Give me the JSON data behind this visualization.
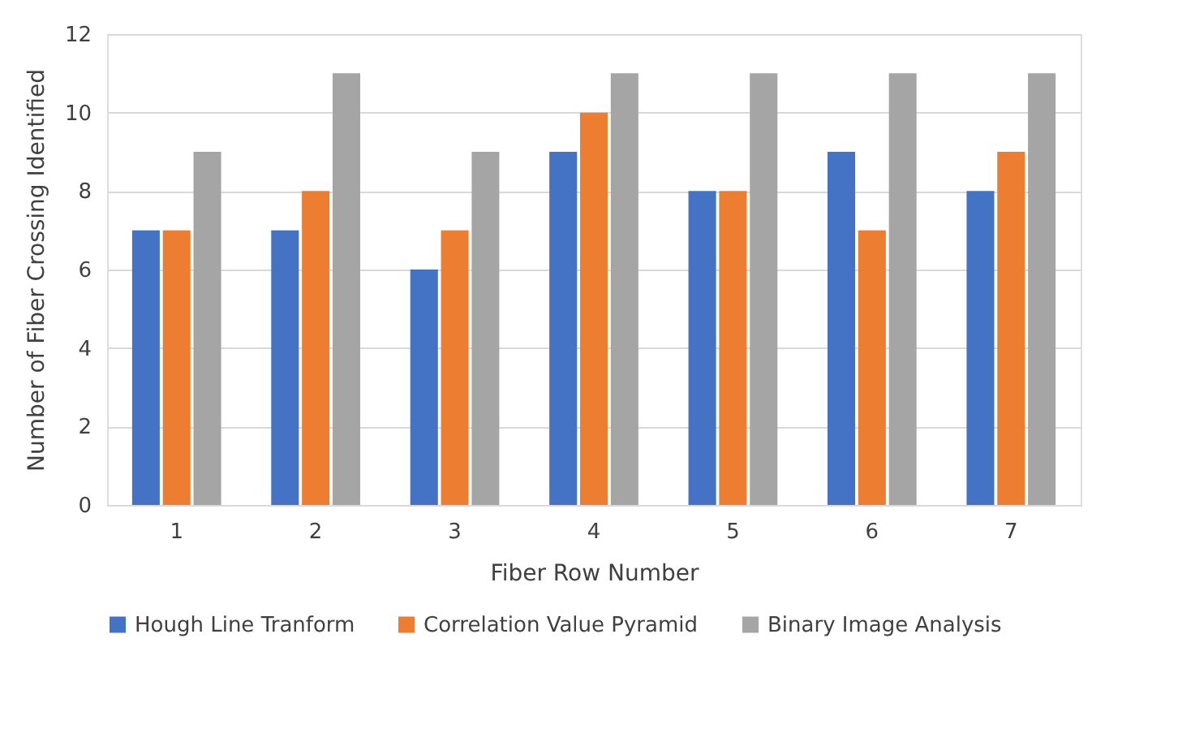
{
  "chart_data": {
    "type": "bar",
    "xlabel": "Fiber Row Number",
    "ylabel": "Number of Fiber Crossing Identified",
    "categories": [
      "1",
      "2",
      "3",
      "4",
      "5",
      "6",
      "7"
    ],
    "series": [
      {
        "name": "Hough Line Tranform",
        "color": "#4472c4",
        "values": [
          7,
          7,
          6,
          9,
          8,
          9,
          8
        ]
      },
      {
        "name": "Correlation Value Pyramid",
        "color": "#ed7d31",
        "values": [
          7,
          8,
          7,
          10,
          8,
          7,
          9
        ]
      },
      {
        "name": "Binary Image Analysis",
        "color": "#a5a5a5",
        "values": [
          9,
          11,
          9,
          11,
          11,
          11,
          11
        ]
      }
    ],
    "ylim": [
      0,
      12
    ],
    "yticks": [
      0,
      2,
      4,
      6,
      8,
      10,
      12
    ],
    "grid": "y",
    "legend": "bottom"
  }
}
